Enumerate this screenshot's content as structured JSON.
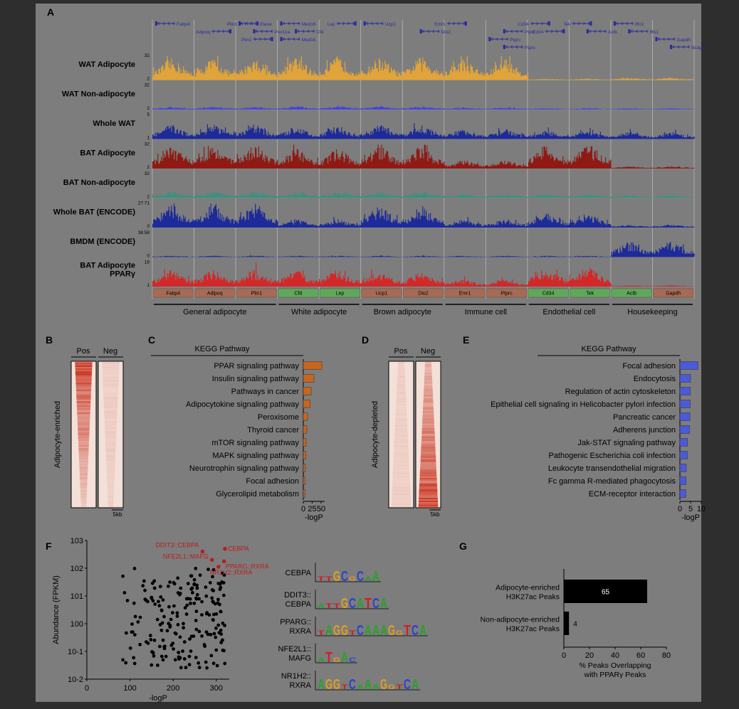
{
  "panel_letters": {
    "a": "A",
    "b": "B",
    "c": "C",
    "d": "D",
    "e": "E",
    "f": "F",
    "g": "G"
  },
  "panel_a": {
    "genes": [
      {
        "name": "Fabp4",
        "row": 0,
        "dir": "left"
      },
      {
        "name": "Adipoq",
        "row": 1,
        "dir": "right"
      },
      {
        "name": "Plin1",
        "row": 0,
        "dir": "right"
      },
      {
        "name": "Plin1",
        "row": 2,
        "dir": "right"
      },
      {
        "name": "Elane",
        "row": 0,
        "dir": "left"
      },
      {
        "name": "Pex11a",
        "row": 1,
        "dir": "left"
      },
      {
        "name": "Med16",
        "row": 0,
        "dir": "left"
      },
      {
        "name": "Cfd",
        "row": 1,
        "dir": "left"
      },
      {
        "name": "Med16",
        "row": 2,
        "dir": "left"
      },
      {
        "name": "Lep",
        "row": 0,
        "dir": "right"
      },
      {
        "name": "Ucp1",
        "row": 0,
        "dir": "left"
      },
      {
        "name": "Dio2",
        "row": 1,
        "dir": "left"
      },
      {
        "name": "Emr1",
        "row": 0,
        "dir": "right"
      },
      {
        "name": "Ptprc",
        "row": 1,
        "dir": "left"
      },
      {
        "name": "Ptprc",
        "row": 2,
        "dir": "left"
      },
      {
        "name": "Ptprc",
        "row": 3,
        "dir": "left"
      },
      {
        "name": "Cd34",
        "row": 0,
        "dir": "right"
      },
      {
        "name": "Cd34",
        "row": 1,
        "dir": "right"
      },
      {
        "name": "Tek",
        "row": 0,
        "dir": "right"
      },
      {
        "name": "Actb",
        "row": 1,
        "dir": "left"
      },
      {
        "name": "Iffo1",
        "row": 0,
        "dir": "left"
      },
      {
        "name": "Iffo1",
        "row": 1,
        "dir": "left"
      },
      {
        "name": "Gapdh",
        "row": 2,
        "dir": "left"
      },
      {
        "name": "Ncapd2",
        "row": 3,
        "dir": "left"
      }
    ],
    "tracks": [
      {
        "label": "WAT Adipocyte",
        "max": "32",
        "min": "2",
        "color": "#e0a43a",
        "profile": [
          0.75,
          0.8,
          0.8,
          0.75,
          0.05,
          0.08,
          0.15,
          0.02,
          0.3
        ]
      },
      {
        "label": "WAT Non-adipocyte",
        "max": "32",
        "min": "2",
        "color": "#3f43e6",
        "profile": [
          0.1,
          0.12,
          0.12,
          0.08,
          0.05,
          0.05,
          0.1,
          0.2,
          0.75
        ]
      },
      {
        "label": "Whole WAT",
        "max": "5",
        "min": "1",
        "color": "#1d2a9a",
        "profile": [
          0.5,
          0.45,
          0.5,
          0.35,
          0.3,
          0.25,
          0.45,
          0.45,
          0.85
        ]
      },
      {
        "label": "BAT Adipocyte",
        "max": "32",
        "min": "2",
        "color": "#8f1a14",
        "profile": [
          0.85,
          0.7,
          0.8,
          0.3,
          0.85,
          0.08,
          0.1,
          0.05,
          0.3
        ]
      },
      {
        "label": "BAT Non-adipocyte",
        "max": "32",
        "min": "2",
        "color": "#3f8f80",
        "profile": [
          0.25,
          0.22,
          0.22,
          0.15,
          0.15,
          0.1,
          0.12,
          0.15,
          0.35
        ]
      },
      {
        "label": "Whole BAT (ENCODE)",
        "max": "27.71",
        "min": "0",
        "color": "#1d2a9a",
        "profile": [
          0.8,
          0.3,
          0.75,
          0.3,
          0.5,
          0.1,
          0.4,
          0.45,
          0.85
        ]
      },
      {
        "label": "BMDM (ENCODE)",
        "max": "38.58",
        "min": "0",
        "color": "#1d2a9a",
        "profile": [
          0.05,
          0.05,
          0.05,
          0.05,
          0.05,
          0.55,
          0.1,
          0.05,
          0.9
        ]
      },
      {
        "label": "BAT Adipocyte",
        "label2": "PPARγ",
        "max": "18",
        "min": "1",
        "color": "#d22828",
        "profile": [
          0.6,
          0.6,
          0.55,
          0.25,
          0.7,
          0.05,
          0.08,
          0.05,
          0.3
        ]
      }
    ],
    "regions": [
      {
        "name": "Fabp4",
        "color": "#a86a55"
      },
      {
        "name": "Adipoq",
        "color": "#a86a55"
      },
      {
        "name": "Plin1",
        "color": "#a86a55"
      },
      {
        "name": "Cfd",
        "color": "#5fa85a"
      },
      {
        "name": "Lep",
        "color": "#5fa85a"
      },
      {
        "name": "Ucp1",
        "color": "#a86a55"
      },
      {
        "name": "Dio2",
        "color": "#a86a55"
      },
      {
        "name": "Emr1",
        "color": "#a86a55"
      },
      {
        "name": "Ptprc",
        "color": "#a86a55"
      },
      {
        "name": "Cd34",
        "color": "#5fa85a"
      },
      {
        "name": "Tek",
        "color": "#5fa85a"
      },
      {
        "name": "Actb",
        "color": "#5fa85a"
      },
      {
        "name": "Gapdh",
        "color": "#a86a55"
      }
    ],
    "groups": [
      {
        "name": "General adipocyte",
        "start": 0,
        "end": 3
      },
      {
        "name": "White adipocyte",
        "start": 3,
        "end": 5
      },
      {
        "name": "Brown adipocyte",
        "start": 5,
        "end": 7
      },
      {
        "name": "Immune cell",
        "start": 7,
        "end": 9
      },
      {
        "name": "Endothelial cell",
        "start": 9,
        "end": 11
      },
      {
        "name": "Housekeeping",
        "start": 11,
        "end": 13
      }
    ]
  },
  "panel_b": {
    "col1": "Pos",
    "col2": "Neg",
    "ylabel": "Adipocyte-enriched",
    "scale": "5kb"
  },
  "panel_d": {
    "col1": "Pos",
    "col2": "Neg",
    "ylabel": "Adipocyte-depleted",
    "scale": "5kb"
  },
  "panel_c": {
    "header": "KEGG Pathway",
    "xlabel": "-logP",
    "color": "#c8651e",
    "chart_data": {
      "type": "bar",
      "categories": [
        "PPAR signaling pathway",
        "Insulin signaling pathway",
        "Pathways in cancer",
        "Adipocytokine signaling pathway",
        "Peroxisome",
        "Thyroid cancer",
        "mTOR signaling pathway",
        "MAPK signaling pathway",
        "Neurotrophin signaling pathway",
        "Focal adhesion",
        "Glycerolipid metabolism"
      ],
      "values": [
        52,
        30,
        22,
        19,
        12,
        10,
        8,
        7,
        6,
        5,
        5
      ],
      "xlim": [
        0,
        60
      ],
      "ticks": [
        "0",
        "25",
        "50"
      ],
      "xlabel": "-logP"
    }
  },
  "panel_e": {
    "header": "KEGG Pathway",
    "xlabel": "-logP",
    "color": "#4a5ad8",
    "chart_data": {
      "type": "bar",
      "categories": [
        "Focal adhesion",
        "Endocytosis",
        "Regulation of actin cytoskeleton",
        "Epithelial cell signaling in Helicobacter pylori infection",
        "Pancreatic cancer",
        "Adherens junction",
        "Jak-STAT signaling pathway",
        "Pathogenic Escherichia coli infection",
        "Leukocyte transendothelial migration",
        "Fc gamma R-mediated phagocytosis",
        "ECM-receptor interaction"
      ],
      "values": [
        8.5,
        5,
        4.9,
        4.8,
        4.7,
        4.6,
        3.6,
        3.5,
        3,
        2.9,
        2.8
      ],
      "xlim": [
        0,
        10
      ],
      "ticks": [
        "0",
        "5",
        "10"
      ],
      "xlabel": "-logP"
    }
  },
  "panel_f": {
    "chart_data": {
      "type": "scatter",
      "xlabel": "-logP",
      "ylabel": "Abundance (FPKM)",
      "xlim": [
        0,
        330
      ],
      "xticks": [
        "0",
        "100",
        "200",
        "300"
      ],
      "yticks": [
        "10-2",
        "10-1",
        "100",
        "101",
        "102",
        "103"
      ],
      "highlight": [
        {
          "label": "DDIT3::CEBPA",
          "x": 268,
          "y": 2.6
        },
        {
          "label": "CEBPA",
          "x": 320,
          "y": 2.7
        },
        {
          "label": "NFE2L1::MAFG",
          "x": 290,
          "y": 2.3
        },
        {
          "label": "PPARG::RXRA",
          "x": 318,
          "y": 2.25
        },
        {
          "label": "NR1H2::RXRA",
          "x": 305,
          "y": 2.05
        }
      ]
    },
    "motifs": [
      {
        "l1": "CEBPA",
        "l2": "",
        "seq": "TTGCGCAA"
      },
      {
        "l1": "DDIT3::",
        "l2": "CEBPA",
        "seq": "ATTGCATCA"
      },
      {
        "l1": "PPARG::",
        "l2": "RXRA",
        "seq": "TAGGTCAAAGGTCA"
      },
      {
        "l1": "NFE2L1::",
        "l2": "MAFG",
        "seq": "ATGAC"
      },
      {
        "l1": "NR1H2::",
        "l2": "RXRA",
        "seq": "AGGTCAAAGGTCA"
      }
    ]
  },
  "panel_g": {
    "chart_data": {
      "type": "bar",
      "orientation": "horizontal",
      "categories": [
        "Adipocyte-enriched H3K27ac Peaks",
        "Non-adipocyte-enriched H3K27ac Peaks"
      ],
      "values": [
        65,
        4
      ],
      "labels": [
        "65",
        "4"
      ],
      "xlim": [
        0,
        80
      ],
      "ticks": [
        "0",
        "20",
        "40",
        "60",
        "80"
      ],
      "xlabel": "% Peaks Overlapping with PPARγ Peaks"
    },
    "cat_lines": [
      [
        "Adipocyte-enriched",
        "H3K27ac Peaks"
      ],
      [
        "Non-adipocyte-enriched",
        "H3K27ac Peaks"
      ]
    ],
    "xlabel1": "% Peaks Overlapping",
    "xlabel2": "with PPARγ Peaks"
  }
}
